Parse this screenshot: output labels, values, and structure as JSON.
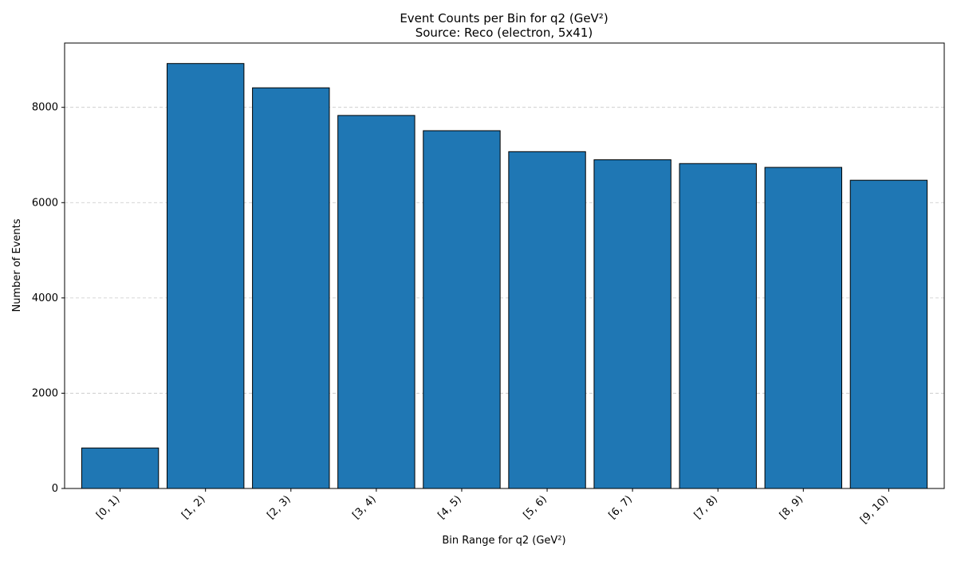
{
  "chart_data": {
    "type": "bar",
    "title": "Event Counts per Bin for q2 (GeV²)",
    "subtitle": "Source: Reco (electron, 5x41)",
    "xlabel": "Bin Range for q2 (GeV²)",
    "ylabel": "Number of Events",
    "categories": [
      "[0, 1)",
      "[1, 2)",
      "[2, 3)",
      "[3, 4)",
      "[4, 5)",
      "[5, 6)",
      "[6, 7)",
      "[7, 8)",
      "[8, 9)",
      "[9, 10)"
    ],
    "values": [
      850,
      8920,
      8410,
      7830,
      7510,
      7070,
      6900,
      6820,
      6740,
      6470
    ],
    "ylim": [
      0,
      9350
    ],
    "yticks": [
      0,
      2000,
      4000,
      6000,
      8000
    ],
    "ytick_labels": [
      "0",
      "2000",
      "4000",
      "6000",
      "8000"
    ],
    "grid": "y-dashed",
    "colors": {
      "bar_fill": "#1f77b4",
      "bar_edge": "#000000",
      "grid": "#c8c8c8"
    }
  }
}
